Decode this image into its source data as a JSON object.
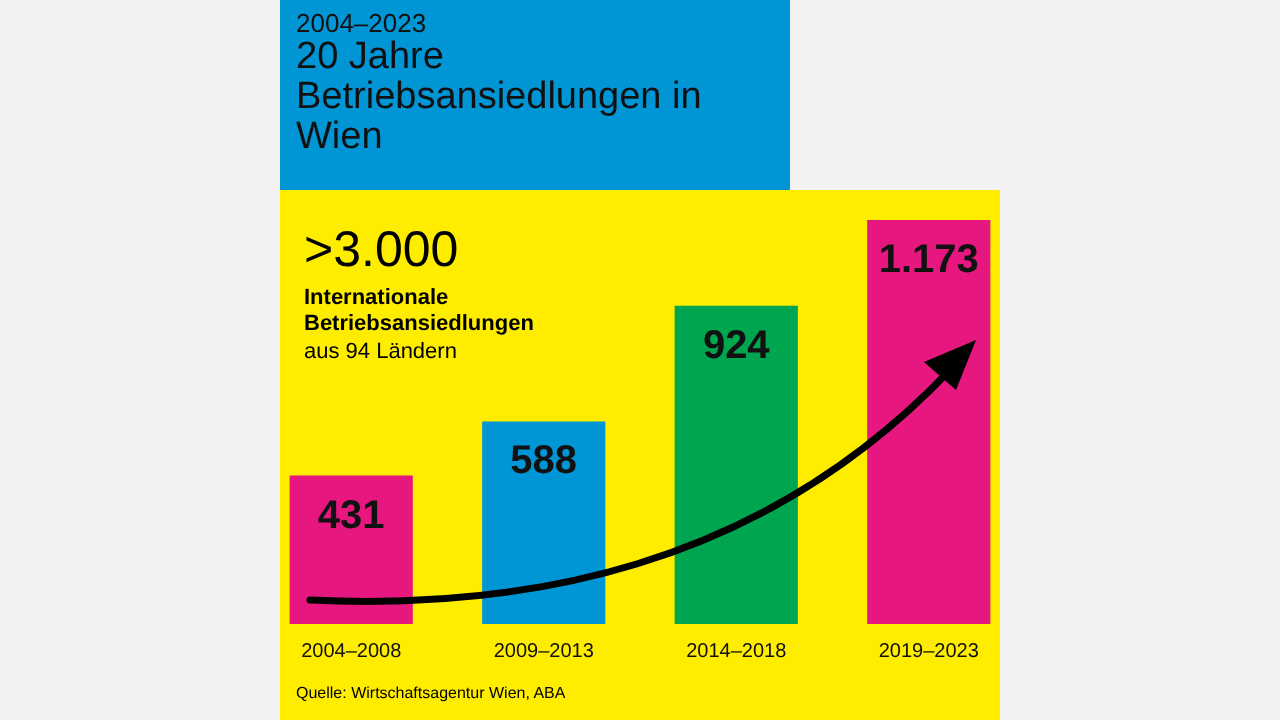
{
  "chart_data": {
    "type": "bar",
    "title": "20 Jahre Betriebsansiedlungen in Wien",
    "subtitle": "2004–2023",
    "categories": [
      "2004–2008",
      "2009–2013",
      "2014–2018",
      "2019–2023"
    ],
    "values": [
      431,
      588,
      924,
      1173
    ],
    "colors": [
      "#e6177f",
      "#0096d6",
      "#00a54f",
      "#e6177f"
    ],
    "data_labels": true,
    "value_labels": [
      "431",
      "588",
      "924",
      "1.173"
    ],
    "annotations": [
      ">3.000",
      "Internationale Betriebsansiedlungen",
      "aus 94 Ländern",
      "Quelle: Wirtschaftsagentur Wien, ABA"
    ]
  }
}
